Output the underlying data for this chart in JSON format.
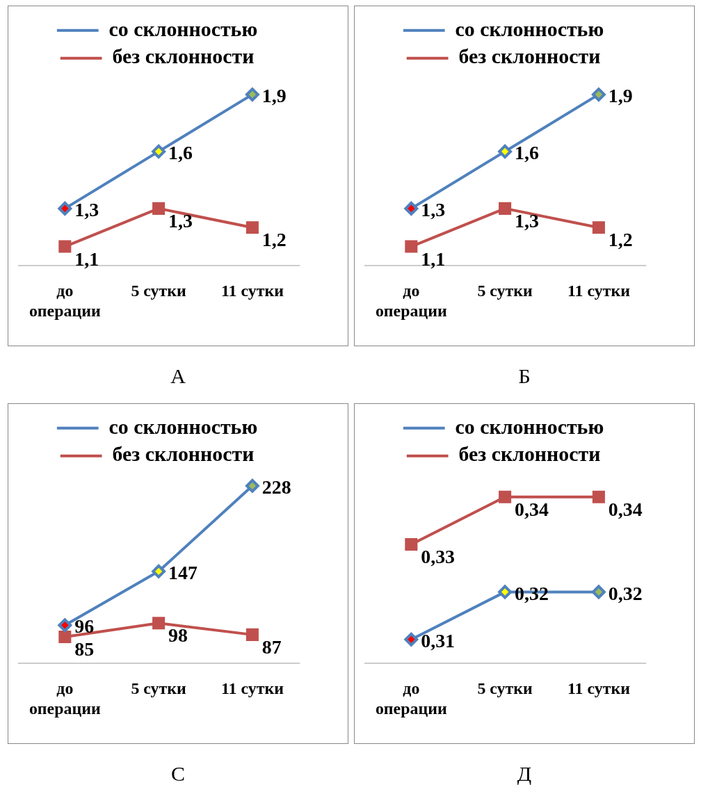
{
  "chart_data": [
    {
      "type": "line",
      "title": "А",
      "categories": [
        "до операции",
        "5 сутки",
        "11 сутки"
      ],
      "legend": "top",
      "grid": false,
      "tick_labels": "x",
      "series": [
        {
          "name": "со склонностью",
          "color": "#4f81bd",
          "colors": [
            "#ff0000",
            "#ffff00",
            "#9bbb59"
          ],
          "marker": "diamond",
          "values": [
            1.3,
            1.6,
            1.9
          ],
          "value_labels": [
            "1,3",
            "1,6",
            "1,9"
          ]
        },
        {
          "name": "без склонности",
          "color": "#c0504d",
          "marker": "square",
          "values": [
            1.1,
            1.3,
            1.2
          ],
          "value_labels": [
            "1,1",
            "1,3",
            "1,2"
          ]
        }
      ]
    },
    {
      "type": "line",
      "title": "Б",
      "categories": [
        "до операции",
        "5 сутки",
        "11 сутки"
      ],
      "legend": "top",
      "grid": false,
      "tick_labels": "x",
      "series": [
        {
          "name": "со склонностью",
          "color": "#4f81bd",
          "colors": [
            "#ff0000",
            "#ffff00",
            "#9bbb59"
          ],
          "marker": "diamond",
          "values": [
            1.3,
            1.6,
            1.9
          ],
          "value_labels": [
            "1,3",
            "1,6",
            "1,9"
          ]
        },
        {
          "name": "без склонности",
          "color": "#c0504d",
          "marker": "square",
          "values": [
            1.1,
            1.3,
            1.2
          ],
          "value_labels": [
            "1,1",
            "1,3",
            "1,2"
          ]
        }
      ]
    },
    {
      "type": "line",
      "title": "С",
      "categories": [
        "до операции",
        "5 сутки",
        "11 сутки"
      ],
      "legend": "top",
      "grid": false,
      "tick_labels": "x",
      "series": [
        {
          "name": "со склонностью",
          "color": "#4f81bd",
          "colors": [
            "#ff0000",
            "#ffff00",
            "#9bbb59"
          ],
          "marker": "diamond",
          "values": [
            96,
            147,
            228
          ],
          "value_labels": [
            "96",
            "147",
            "228"
          ]
        },
        {
          "name": "без склонности",
          "color": "#c0504d",
          "marker": "square",
          "values": [
            85,
            98,
            87
          ],
          "value_labels": [
            "85",
            "98",
            "87"
          ]
        }
      ]
    },
    {
      "type": "line",
      "title": "Д",
      "categories": [
        "до операции",
        "5 сутки",
        "11 сутки"
      ],
      "legend": "top",
      "grid": false,
      "tick_labels": "x",
      "series": [
        {
          "name": "со склонностью",
          "color": "#4f81bd",
          "colors": [
            "#ff0000",
            "#ffff00",
            "#9bbb59"
          ],
          "marker": "diamond",
          "values": [
            0.31,
            0.32,
            0.32
          ],
          "value_labels": [
            "0,31",
            "0,32",
            "0,32"
          ]
        },
        {
          "name": "без склонности",
          "color": "#c0504d",
          "marker": "square",
          "values": [
            0.33,
            0.34,
            0.34
          ],
          "value_labels": [
            "0,33",
            "0,34",
            "0,34"
          ]
        }
      ]
    }
  ]
}
